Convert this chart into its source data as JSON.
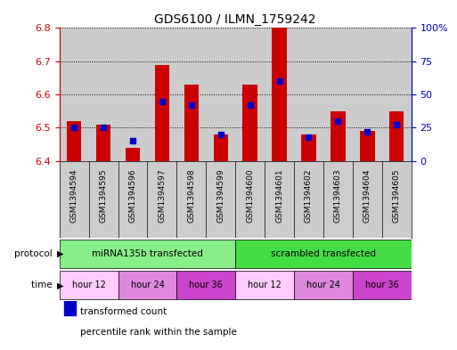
{
  "title": "GDS6100 / ILMN_1759242",
  "samples": [
    "GSM1394594",
    "GSM1394595",
    "GSM1394596",
    "GSM1394597",
    "GSM1394598",
    "GSM1394599",
    "GSM1394600",
    "GSM1394601",
    "GSM1394602",
    "GSM1394603",
    "GSM1394604",
    "GSM1394605"
  ],
  "red_values": [
    6.52,
    6.51,
    6.44,
    6.69,
    6.63,
    6.48,
    6.63,
    6.8,
    6.48,
    6.55,
    6.49,
    6.55
  ],
  "blue_values_pct": [
    25,
    25,
    15,
    45,
    42,
    20,
    42,
    60,
    18,
    30,
    22,
    27
  ],
  "y_min": 6.4,
  "y_max": 6.8,
  "y_ticks": [
    6.4,
    6.5,
    6.6,
    6.7,
    6.8
  ],
  "y2_ticks": [
    0,
    25,
    50,
    75,
    100
  ],
  "bar_bottom": 6.4,
  "bar_color": "#cc0000",
  "dot_color": "#0000cc",
  "protocol_label_left": "miRNA135b transfected",
  "protocol_label_right": "scrambled transfected",
  "protocol_color": "#88ee88",
  "time_colors": {
    "hour 12": "#ffccff",
    "hour 24": "#dd88dd",
    "hour 36": "#cc44cc"
  },
  "time_group_defs": [
    [
      0,
      1,
      "hour 12"
    ],
    [
      2,
      3,
      "hour 24"
    ],
    [
      4,
      5,
      "hour 36"
    ],
    [
      6,
      7,
      "hour 12"
    ],
    [
      8,
      9,
      "hour 24"
    ],
    [
      10,
      11,
      "hour 36"
    ]
  ],
  "bg_gray": "#cccccc",
  "dot_size": 22,
  "legend_red": "transformed count",
  "legend_blue": "percentile rank within the sample"
}
